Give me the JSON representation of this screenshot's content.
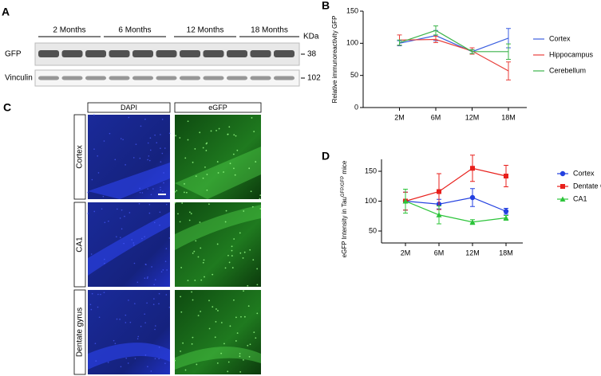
{
  "panel_labels": [
    "A",
    "B",
    "C",
    "D"
  ],
  "blot": {
    "groups": [
      "2 Months",
      "6 Months",
      "12 Months",
      "18 Months"
    ],
    "unit": "KDa",
    "rows": [
      {
        "label": "GFP",
        "kda": 38
      },
      {
        "label": "Vinculin",
        "kda": 102
      }
    ]
  },
  "images": {
    "columns": [
      "DAPI",
      "eGFP"
    ],
    "rows": [
      "Cortex",
      "CA1",
      "Dentate gyrus"
    ]
  },
  "chart_data": [
    {
      "type": "line",
      "y_label": "Relative immunoreactivity GFP",
      "categories": [
        "2M",
        "6M",
        "12M",
        "18M"
      ],
      "ylim": [
        0,
        150
      ],
      "yticks": [
        0,
        50,
        100,
        150
      ],
      "series": [
        {
          "name": "Cortex",
          "color": "#3b5fe0",
          "values": [
            100,
            112,
            87,
            108
          ],
          "errors": [
            4,
            8,
            3,
            15
          ]
        },
        {
          "name": "Hippocampus",
          "color": "#e8403c",
          "values": [
            105,
            106,
            88,
            57
          ],
          "errors": [
            8,
            5,
            5,
            14
          ]
        },
        {
          "name": "Cerebellum",
          "color": "#3cb44b",
          "values": [
            101,
            120,
            87,
            87
          ],
          "errors": [
            4,
            7,
            3,
            12
          ]
        }
      ]
    },
    {
      "type": "line",
      "y_label": [
        "eGFP Intensity in Tau",
        "GFP/GFP",
        " mice"
      ],
      "categories": [
        "2M",
        "6M",
        "12M",
        "18M"
      ],
      "ylim": [
        30,
        170
      ],
      "yticks": [
        50,
        100,
        150
      ],
      "series": [
        {
          "name": "Cortex",
          "color": "#2340e0",
          "marker": "circle",
          "values": [
            100,
            95,
            106,
            83
          ],
          "errors": [
            15,
            8,
            15,
            5
          ]
        },
        {
          "name": "Dentate Gyrus",
          "color": "#e8201c",
          "marker": "square",
          "values": [
            100,
            116,
            155,
            142
          ],
          "errors": [
            15,
            30,
            22,
            18
          ]
        },
        {
          "name": "CA1",
          "color": "#2cc43a",
          "marker": "triangle",
          "values": [
            100,
            77,
            65,
            72
          ],
          "errors": [
            20,
            15,
            4,
            4
          ]
        }
      ]
    }
  ]
}
